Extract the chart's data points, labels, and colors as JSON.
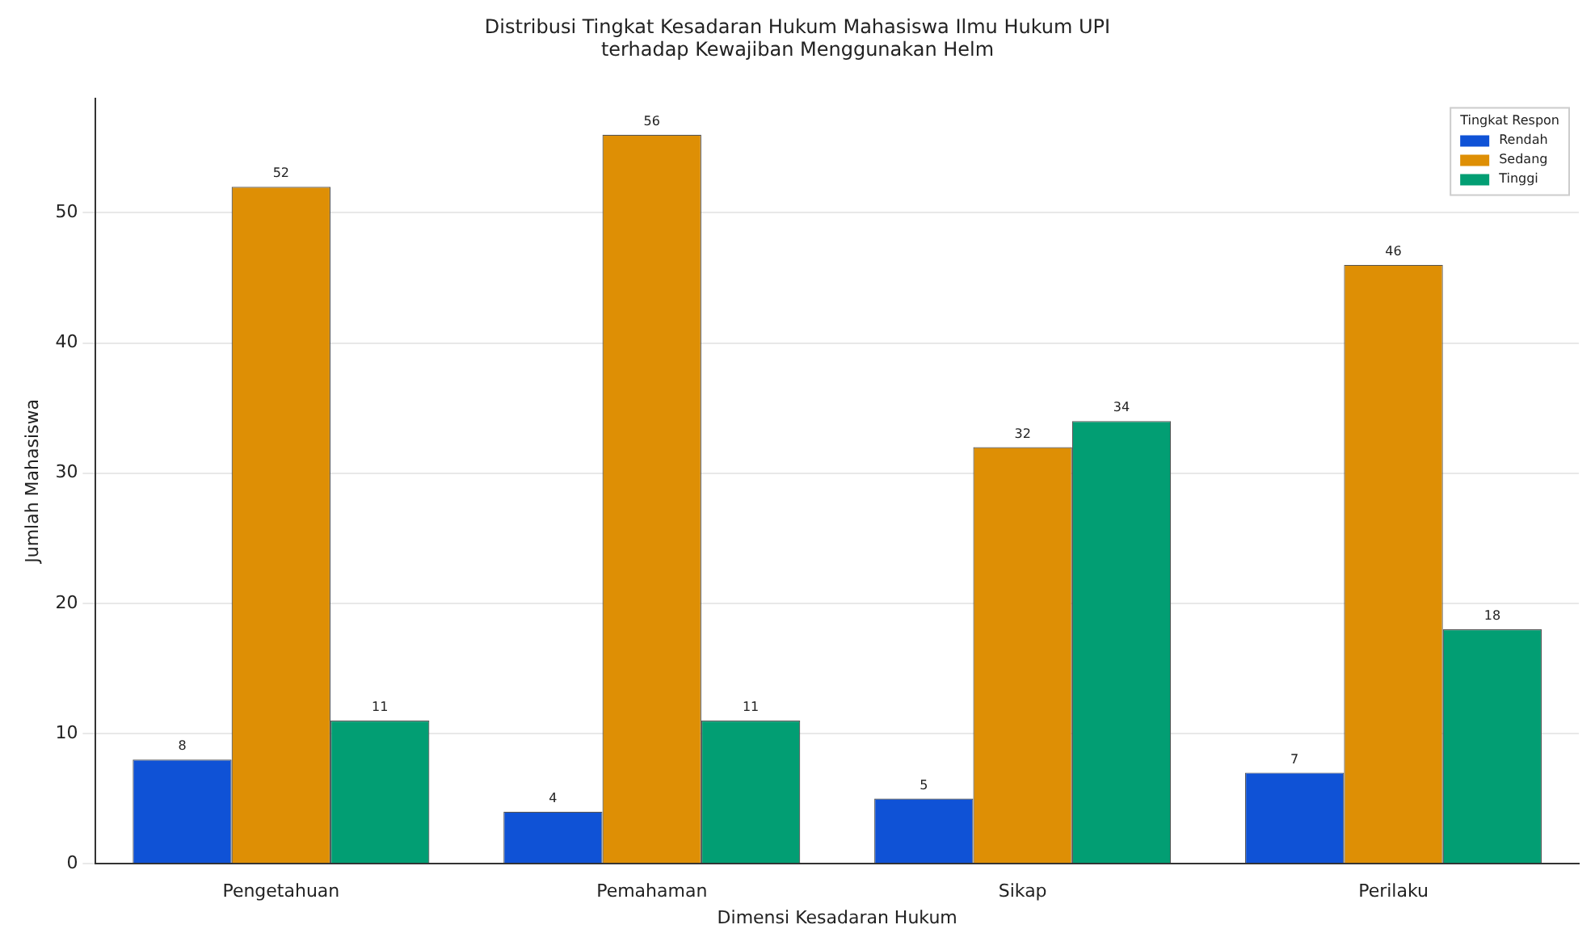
{
  "chart_data": {
    "type": "bar",
    "title": "Distribusi Tingkat Kesadaran Hukum Mahasiswa Ilmu Hukum UPI\nterhadap Kewajiban Menggunakan Helm",
    "xlabel": "Dimensi Kesadaran Hukum",
    "ylabel": "Jumlah Mahasiswa",
    "legend_title": "Tingkat Respon",
    "categories": [
      "Pengetahuan",
      "Pemahaman",
      "Sikap",
      "Perilaku"
    ],
    "series": [
      {
        "name": "Rendah",
        "color": "#0f52d6",
        "values": [
          8,
          4,
          5,
          7
        ]
      },
      {
        "name": "Sedang",
        "color": "#de8f05",
        "values": [
          52,
          56,
          32,
          46
        ]
      },
      {
        "name": "Tinggi",
        "color": "#029e73",
        "values": [
          11,
          11,
          34,
          18
        ]
      }
    ],
    "ylim": [
      0,
      58.8
    ],
    "yticks": [
      0,
      10,
      20,
      30,
      40,
      50
    ],
    "grid": "y",
    "legend": "top right",
    "data_labels": true
  }
}
